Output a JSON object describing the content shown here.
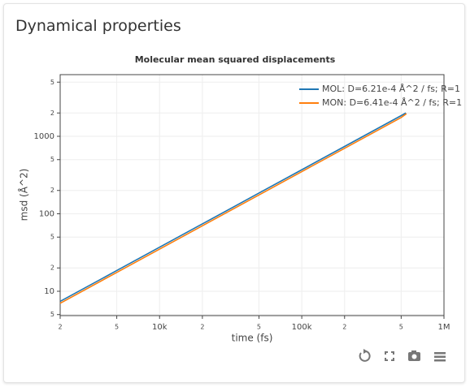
{
  "header": {
    "title": "Dynamical properties"
  },
  "chart_data": {
    "type": "line",
    "title": "Molecular mean squared displacements",
    "x_label": "time (fs)",
    "y_label": "msd (Å^2)",
    "x_log": true,
    "y_log": true,
    "grid": true,
    "legend": "top-right",
    "xlim": [
      2000,
      1000000
    ],
    "ylim": [
      4.85,
      6250
    ],
    "xticks": [
      {
        "value": 2000,
        "label": "2"
      },
      {
        "value": 5000,
        "label": "5"
      },
      {
        "value": 10000,
        "label": "10k"
      },
      {
        "value": 20000,
        "label": "2"
      },
      {
        "value": 50000,
        "label": "5"
      },
      {
        "value": 100000,
        "label": "100k"
      },
      {
        "value": 200000,
        "label": "2"
      },
      {
        "value": 500000,
        "label": "5"
      },
      {
        "value": 1000000,
        "label": "1M"
      }
    ],
    "yticks": [
      5,
      10,
      {
        "value": 20,
        "label": "2"
      },
      {
        "value": 50,
        "label": "5"
      },
      100,
      {
        "value": 200,
        "label": "2"
      },
      {
        "value": 500,
        "label": "5"
      },
      1000,
      {
        "value": 2000,
        "label": "2"
      },
      {
        "value": 5000,
        "label": "5"
      }
    ],
    "series": [
      {
        "name": "MOL: D=6.21e-4 Å^2 / fs; R=1",
        "color": "#1f77b4",
        "x": [
          2000,
          5000,
          10000,
          20000,
          50000,
          100000,
          200000,
          500000,
          540000
        ],
        "values": [
          7.4,
          18.5,
          37,
          74,
          185,
          370,
          740,
          1850,
          2000
        ]
      },
      {
        "name": "MON: D=6.41e-4 Å^2 / fs; R=1",
        "color": "#ff7f0e",
        "x": [
          2000,
          5000,
          10000,
          20000,
          50000,
          100000,
          200000,
          500000,
          545000
        ],
        "values": [
          7.0,
          17.5,
          35,
          70,
          175,
          350,
          700,
          1750,
          1960
        ]
      }
    ]
  }
}
